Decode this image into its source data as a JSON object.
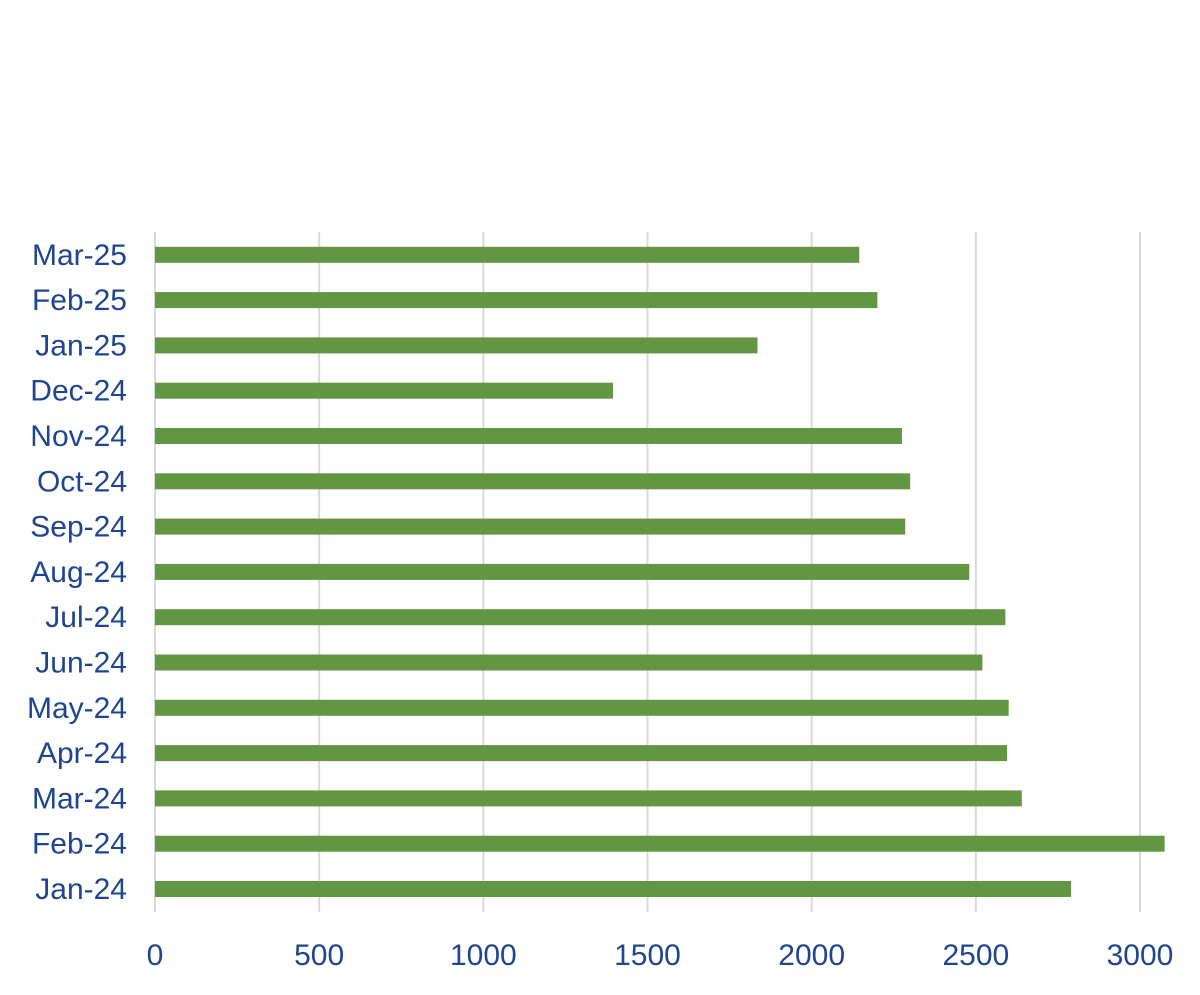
{
  "colors": {
    "bar": "#629643",
    "label": "#1f4490",
    "gridline": "#d9d9d9"
  },
  "chart_data": {
    "type": "bar",
    "orientation": "horizontal",
    "categories": [
      "Jan-24",
      "Feb-24",
      "Mar-24",
      "Apr-24",
      "May-24",
      "Jun-24",
      "Jul-24",
      "Aug-24",
      "Sep-24",
      "Oct-24",
      "Nov-24",
      "Dec-24",
      "Jan-25",
      "Feb-25",
      "Mar-25"
    ],
    "values": [
      2790,
      3075,
      2640,
      2595,
      2600,
      2520,
      2590,
      2480,
      2285,
      2300,
      2275,
      1395,
      1835,
      2200,
      2145
    ],
    "title": "",
    "xlabel": "",
    "ylabel": "",
    "xlim": [
      0,
      3100
    ],
    "xticks": [
      0,
      500,
      1000,
      1500,
      2000,
      2500,
      3000
    ],
    "xtick_labels": [
      "0",
      "500",
      "1000",
      "1500",
      "2000",
      "2500",
      "3000"
    ],
    "grid": "vertical",
    "legend": "none"
  }
}
